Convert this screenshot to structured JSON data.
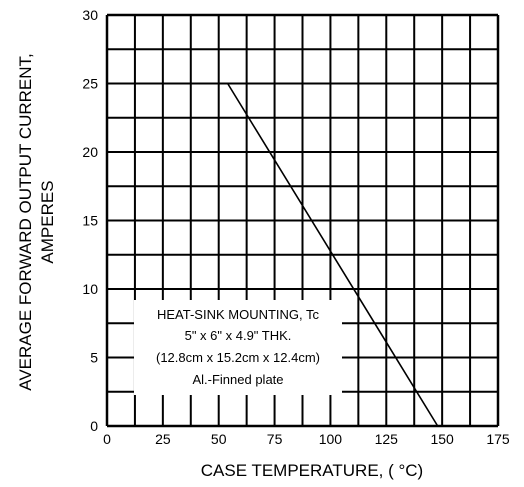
{
  "chart_data": {
    "type": "line",
    "xlabel": "CASE TEMPERATURE, ( °C)",
    "ylabel": [
      "AVERAGE FORWARD OUTPUT CURRENT,",
      "AMPERES"
    ],
    "xlim": [
      0,
      175
    ],
    "ylim": [
      0,
      30
    ],
    "x_ticks": [
      0,
      25,
      50,
      75,
      100,
      125,
      150,
      175
    ],
    "y_ticks": [
      0,
      5,
      10,
      15,
      20,
      25,
      30
    ],
    "grid": true,
    "grid_x_minor_step": 12.5,
    "grid_y_minor_step": 2.5,
    "series": [
      {
        "x": [
          0,
          54,
          148
        ],
        "y": [
          25,
          25,
          0
        ]
      }
    ],
    "annotation": {
      "lines": [
        "HEAT-SINK MOUNTING, Tc",
        "5\" x 6\" x 4.9\" THK.",
        "(12.8cm x 15.2cm x 12.4cm)",
        "Al.-Finned plate"
      ]
    },
    "colors": {
      "grid": "#000000",
      "series": "#000000",
      "background": "#ffffff"
    }
  }
}
